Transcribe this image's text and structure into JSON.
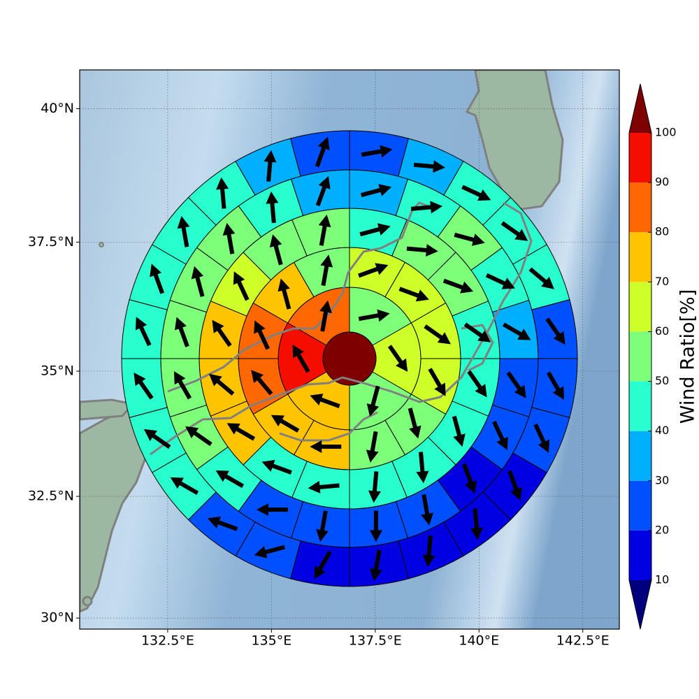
{
  "chart_data": {
    "type": "polar_sector_map",
    "xlim": [
      130.38,
      143.38
    ],
    "ylim": [
      29.77,
      40.71
    ],
    "xticks": [
      {
        "value": 132.5,
        "label": "132.5°E"
      },
      {
        "value": 135,
        "label": "135°E"
      },
      {
        "value": 137.5,
        "label": "137.5°E"
      },
      {
        "value": 140,
        "label": "140°E"
      },
      {
        "value": 142.5,
        "label": "142.5°E"
      }
    ],
    "yticks": [
      {
        "value": 30,
        "label": "30°N"
      },
      {
        "value": 32.5,
        "label": "32.5°N"
      },
      {
        "value": 35,
        "label": "35°N"
      },
      {
        "value": 37.5,
        "label": "37.5°N"
      },
      {
        "value": 40,
        "label": "40°N"
      }
    ],
    "grid": true,
    "rings": [
      {
        "values": [
          55,
          65,
          55,
          75,
          95,
          85
        ],
        "directions": [
          80,
          145,
          195,
          290,
          330,
          10
        ]
      },
      {
        "values": [
          65,
          65,
          65,
          65,
          55,
          55,
          75,
          75,
          85,
          85,
          75,
          55
        ],
        "directions": [
          70,
          110,
          125,
          150,
          165,
          190,
          270,
          300,
          320,
          335,
          345,
          10
        ]
      },
      {
        "values": [
          45,
          55,
          55,
          45,
          45,
          45,
          45,
          45,
          45,
          45,
          75,
          75,
          75,
          65,
          55,
          55
        ],
        "directions": [
          75,
          95,
          110,
          125,
          145,
          165,
          175,
          185,
          265,
          290,
          300,
          310,
          325,
          335,
          345,
          10
        ]
      },
      {
        "values": [
          35,
          45,
          55,
          45,
          35,
          25,
          25,
          15,
          25,
          25,
          25,
          25,
          45,
          55,
          55,
          55,
          55,
          55,
          45,
          35
        ],
        "directions": [
          75,
          85,
          105,
          115,
          120,
          145,
          155,
          160,
          170,
          180,
          190,
          270,
          300,
          305,
          330,
          340,
          345,
          350,
          355,
          20
        ]
      },
      {
        "values": [
          25,
          35,
          45,
          45,
          45,
          25,
          25,
          25,
          15,
          15,
          15,
          15,
          15,
          25,
          25,
          45,
          45,
          45,
          45,
          45,
          45,
          45,
          35,
          25
        ],
        "directions": [
          80,
          95,
          115,
          125,
          130,
          145,
          150,
          155,
          160,
          175,
          185,
          190,
          210,
          255,
          290,
          300,
          305,
          325,
          335,
          340,
          350,
          355,
          5,
          20
        ]
      }
    ],
    "colorbar": {
      "label": "Wind Ratio[%]",
      "ticks": [
        10,
        20,
        30,
        40,
        50,
        60,
        70,
        80,
        90,
        100
      ],
      "colors": [
        "#0000e0",
        "#0050ff",
        "#00b0ff",
        "#29ffce",
        "#7dff7a",
        "#ceff29",
        "#ffc400",
        "#ff6800",
        "#f50e00"
      ],
      "under": "#00007f",
      "over": "#7f0000"
    }
  }
}
